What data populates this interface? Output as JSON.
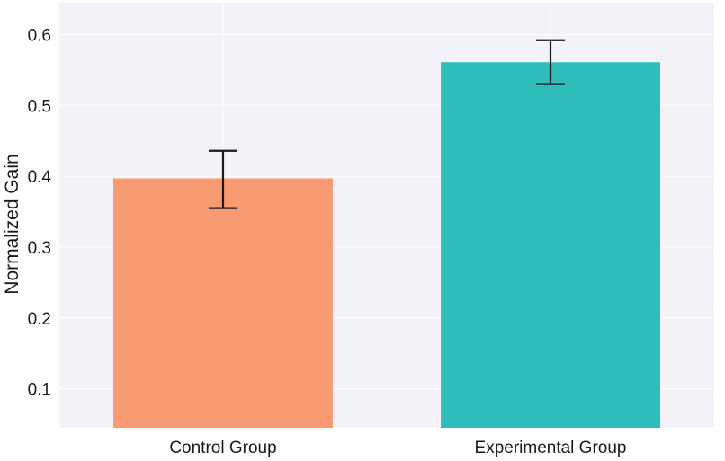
{
  "chart_data": {
    "type": "bar",
    "categories": [
      "Control Group",
      "Experimental Group"
    ],
    "values": [
      0.397,
      0.561
    ],
    "error_bars": [
      {
        "low": 0.355,
        "high": 0.436
      },
      {
        "low": 0.53,
        "high": 0.592
      }
    ],
    "xlabel": "",
    "ylabel": "Normalized Gain",
    "ylim": [
      0.045,
      0.645
    ],
    "yticks": [
      0.1,
      0.2,
      0.3,
      0.4,
      0.5,
      0.6
    ],
    "ytick_labels": [
      "0.1",
      "0.2",
      "0.3",
      "0.4",
      "0.5",
      "0.6"
    ],
    "grid": true,
    "legend": "none",
    "colors": {
      "bars": [
        "#f89a72",
        "#2ebdbb"
      ],
      "plot_background": "#f2f2f8",
      "grid": "#ffffff",
      "error_bar": "#1a1a1a"
    }
  }
}
